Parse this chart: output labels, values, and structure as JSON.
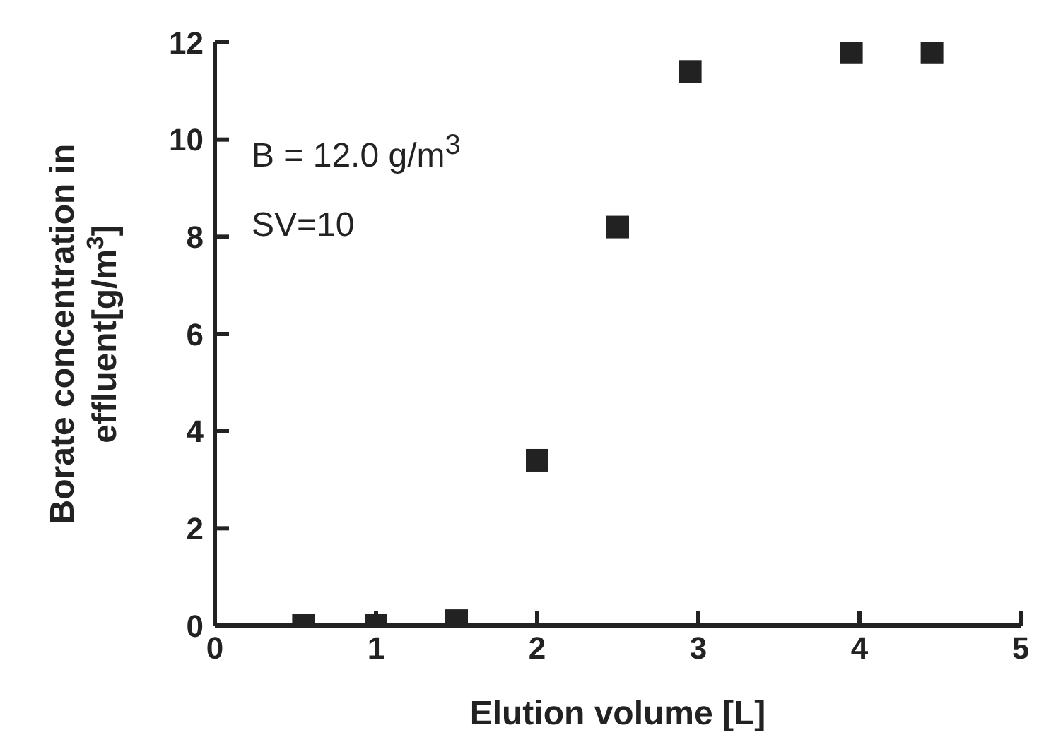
{
  "chart_data": {
    "type": "scatter",
    "xlabel": "Elution volume [L]",
    "ylabel": "Borate concentration in effluent[g/m$^{3}$]",
    "annotations": [
      "B = 12.0 g/m$^{3}$",
      "SV=10"
    ],
    "x": [
      0.55,
      1,
      1.5,
      2,
      2.5,
      2.95,
      3.95,
      4.45
    ],
    "values": [
      0,
      0,
      0.1,
      3.4,
      8.2,
      11.4,
      11.8,
      11.8
    ],
    "color": "#222222",
    "marker": "square",
    "xlim": [
      0,
      5
    ],
    "xticks": [
      0,
      1,
      2,
      3,
      4,
      5
    ],
    "ylim": [
      0,
      12
    ],
    "yticks": [
      0,
      2,
      4,
      6,
      8,
      10,
      12
    ],
    "grid": false,
    "legend": false
  }
}
